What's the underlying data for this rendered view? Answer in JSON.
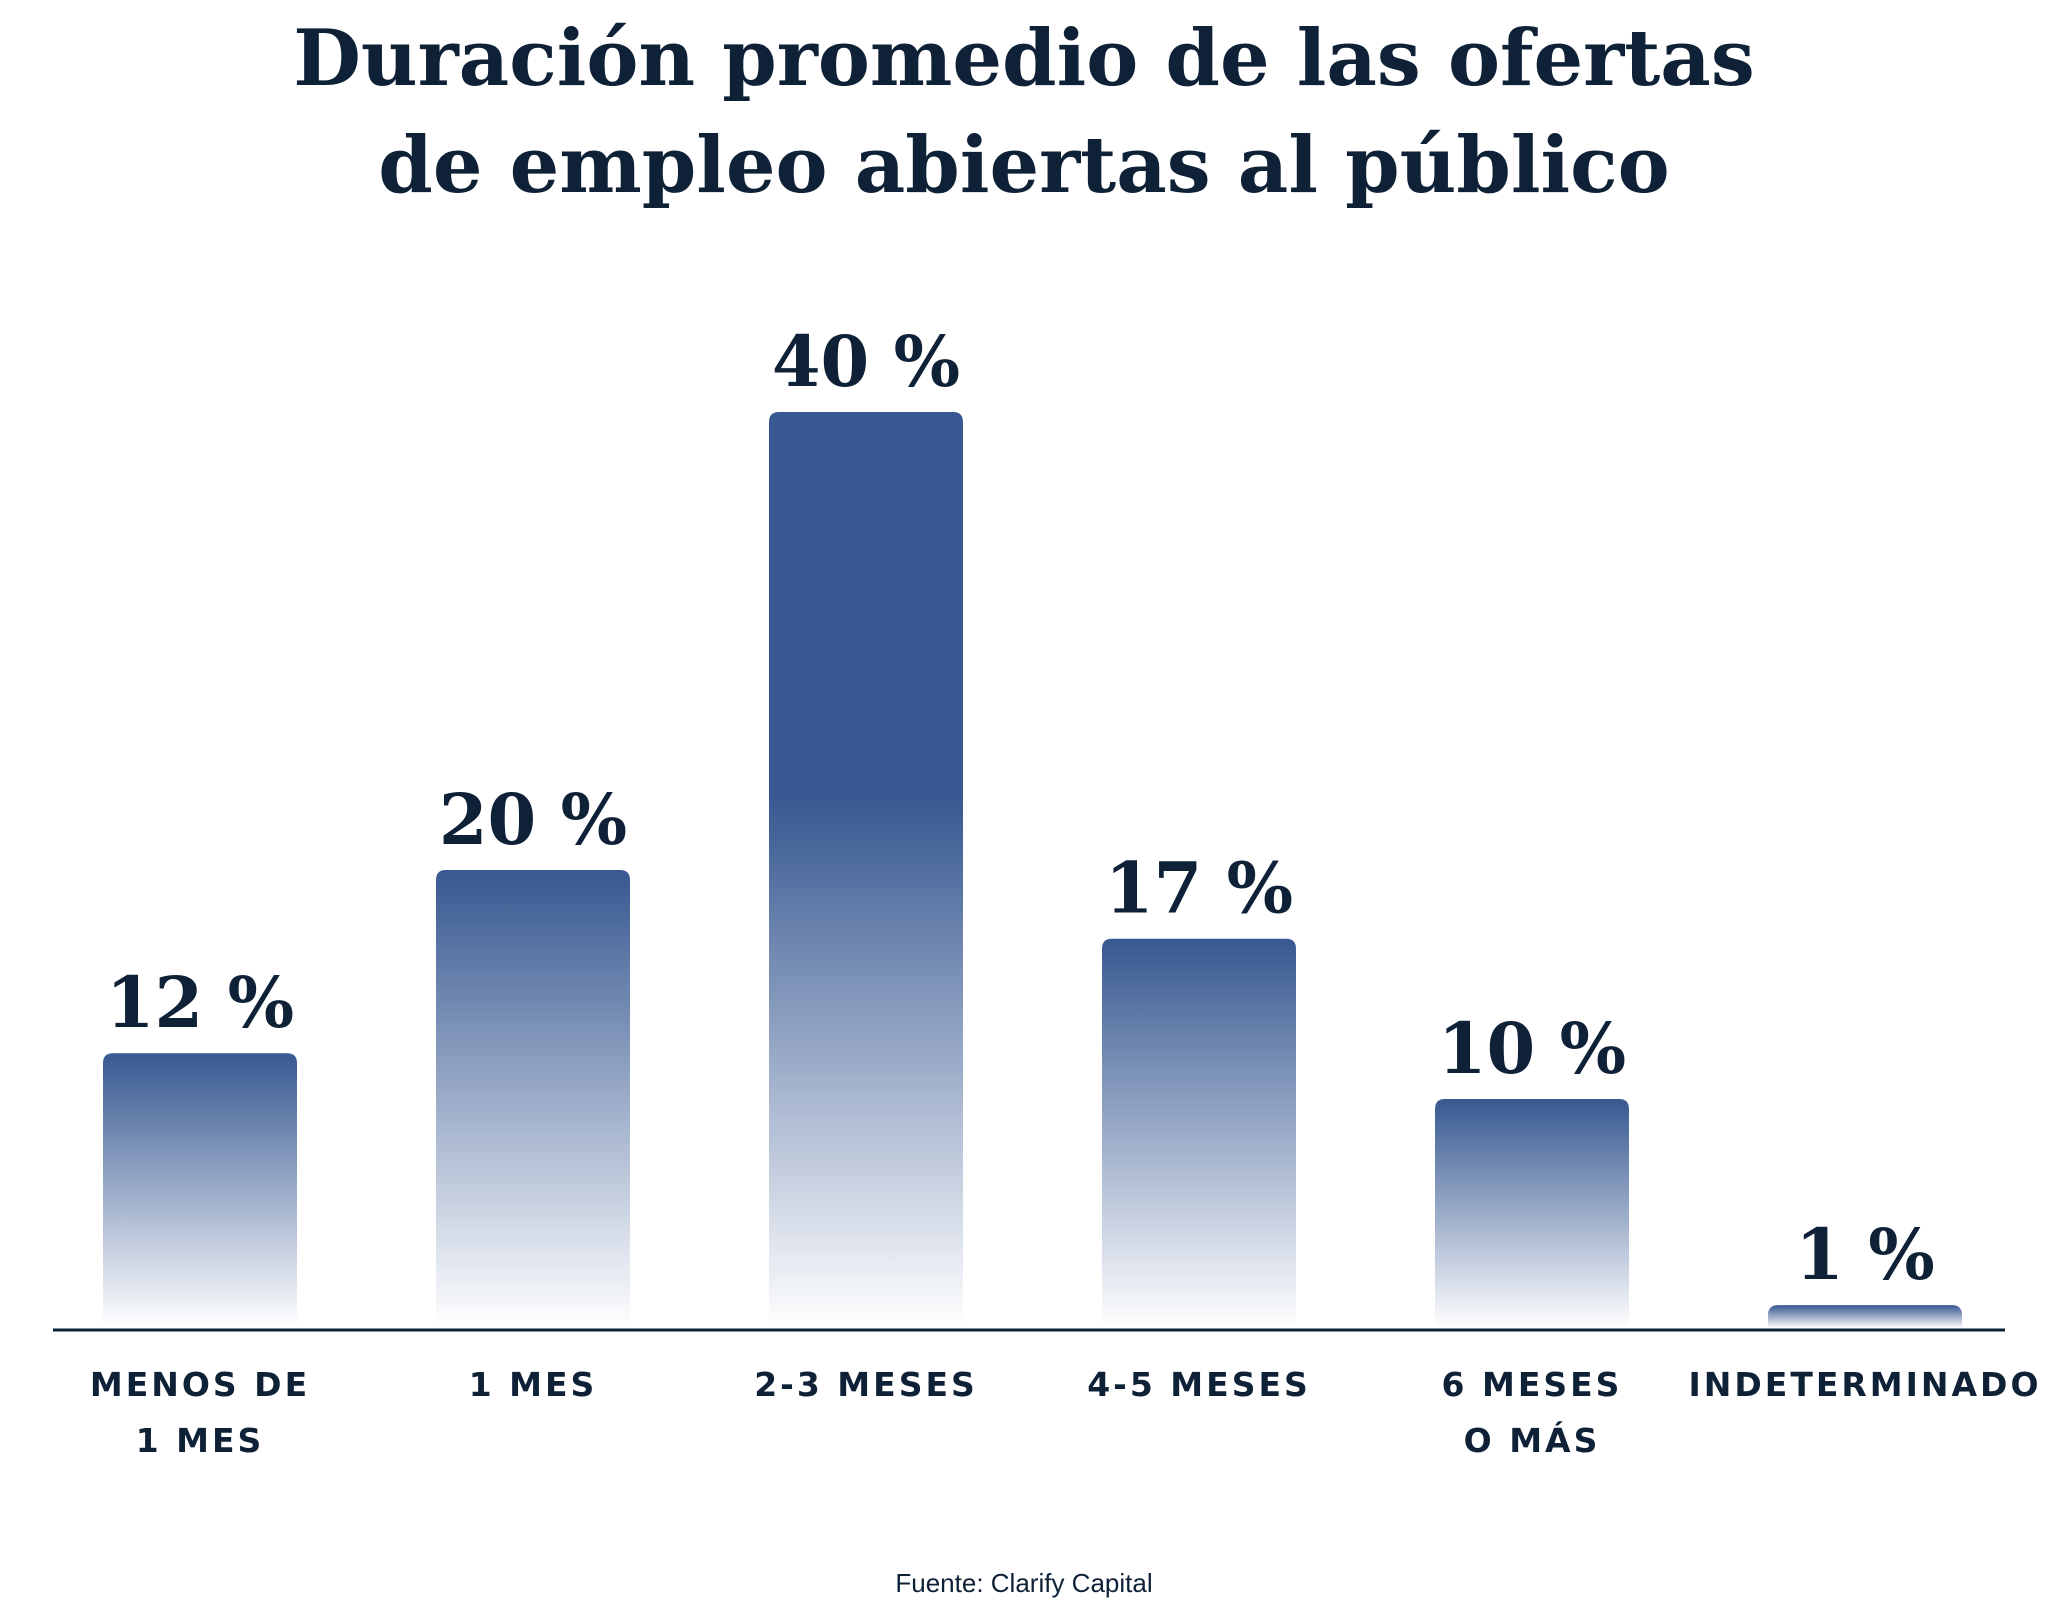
{
  "title": {
    "line1": "Duración promedio de las ofertas",
    "line2": "de empleo abiertas al público"
  },
  "source": "Fuente: Clarify Capital",
  "colors": {
    "text": "#0e2137",
    "bar_top": "#375891",
    "bar_bottom": "#ffffff",
    "axis": "#0e2137"
  },
  "chart_data": {
    "type": "bar",
    "title": "Duración promedio de las ofertas de empleo abiertas al público",
    "categories": [
      [
        "MENOS DE",
        "1 MES"
      ],
      [
        "1 MES"
      ],
      [
        "2-3 MESES"
      ],
      [
        "4-5 MESES"
      ],
      [
        "6 MESES",
        "O MÁS"
      ],
      [
        "INDETERMINADO"
      ]
    ],
    "values": [
      12,
      20,
      40,
      17,
      10,
      1
    ],
    "data_labels": [
      "12 %",
      "20 %",
      "40 %",
      "17 %",
      "10 %",
      "1 %"
    ],
    "unit": "%",
    "ylim": [
      0,
      40
    ],
    "grid": false,
    "legend": "none"
  }
}
